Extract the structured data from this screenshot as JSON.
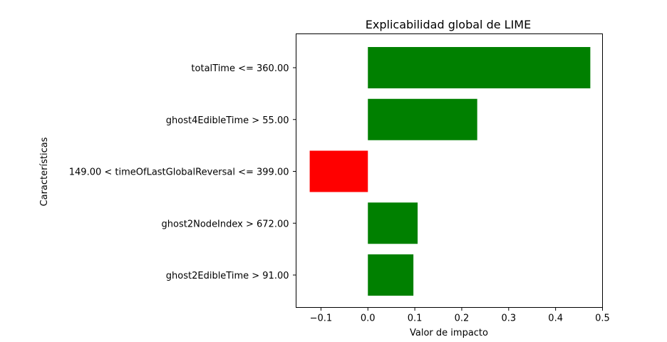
{
  "chart_data": {
    "type": "bar",
    "orientation": "horizontal",
    "title": "Explicabilidad global de LIME",
    "xlabel": "Valor de impacto",
    "ylabel": "Características",
    "xlim": [
      -0.153,
      0.5
    ],
    "xticks": [
      -0.1,
      0.0,
      0.1,
      0.2,
      0.3,
      0.4,
      0.5
    ],
    "xtick_labels": [
      "−0.1",
      "0.0",
      "0.1",
      "0.2",
      "0.3",
      "0.4",
      "0.5"
    ],
    "categories": [
      "totalTime <= 360.00",
      "ghost4EdibleTime > 55.00",
      "149.00 < timeOfLastGlobalReversal <= 399.00",
      "ghost2NodeIndex > 672.00",
      "ghost2EdibleTime > 91.00"
    ],
    "values": [
      0.474,
      0.233,
      -0.124,
      0.106,
      0.097
    ],
    "colors": [
      "#008000",
      "#008000",
      "#ff0000",
      "#008000",
      "#008000"
    ],
    "grid": false,
    "legend": "none"
  }
}
